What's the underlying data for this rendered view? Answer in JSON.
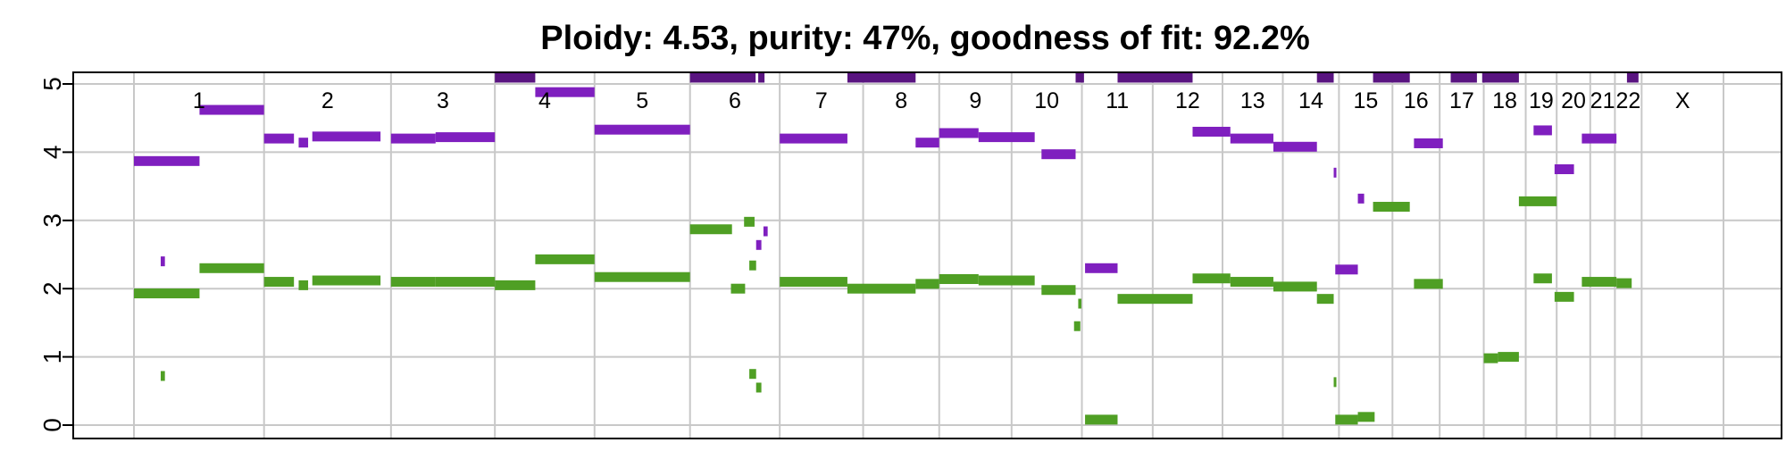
{
  "chart_data": {
    "type": "segments",
    "title": "Ploidy: 4.53, purity: 47%, goodness of fit: 92.2%",
    "xlabel": "",
    "ylabel": "",
    "ylim": [
      0,
      5
    ],
    "y_ticks": [
      "0",
      "1",
      "2",
      "3",
      "4",
      "5"
    ],
    "grid": true,
    "colors": {
      "major": "#7f1fbf",
      "minor": "#4f9f24",
      "clipped": "#591480",
      "grid": "#c8c8c8",
      "axis": "#000000",
      "text": "#000000"
    },
    "chromosomes": [
      {
        "label": "1",
        "start": 0,
        "end": 248
      },
      {
        "label": "2",
        "start": 248,
        "end": 490
      },
      {
        "label": "3",
        "start": 490,
        "end": 688
      },
      {
        "label": "4",
        "start": 688,
        "end": 878
      },
      {
        "label": "5",
        "start": 878,
        "end": 1060
      },
      {
        "label": "6",
        "start": 1060,
        "end": 1231
      },
      {
        "label": "7",
        "start": 1231,
        "end": 1390
      },
      {
        "label": "8",
        "start": 1390,
        "end": 1535
      },
      {
        "label": "9",
        "start": 1535,
        "end": 1673
      },
      {
        "label": "10",
        "start": 1673,
        "end": 1807
      },
      {
        "label": "11",
        "start": 1807,
        "end": 1942
      },
      {
        "label": "12",
        "start": 1942,
        "end": 2075
      },
      {
        "label": "13",
        "start": 2075,
        "end": 2190
      },
      {
        "label": "14",
        "start": 2190,
        "end": 2297
      },
      {
        "label": "15",
        "start": 2297,
        "end": 2399
      },
      {
        "label": "16",
        "start": 2399,
        "end": 2489
      },
      {
        "label": "17",
        "start": 2489,
        "end": 2573
      },
      {
        "label": "18",
        "start": 2573,
        "end": 2653
      },
      {
        "label": "19",
        "start": 2653,
        "end": 2712
      },
      {
        "label": "20",
        "start": 2712,
        "end": 2776
      },
      {
        "label": "21",
        "start": 2776,
        "end": 2823
      },
      {
        "label": "22",
        "start": 2823,
        "end": 2874
      },
      {
        "label": "X",
        "start": 2874,
        "end": 3030
      }
    ],
    "series": [
      {
        "name": "",
        "role": "major",
        "segments": [
          [
            0,
            125,
            3.87
          ],
          [
            125,
            248,
            4.62
          ],
          [
            248,
            305,
            4.2
          ],
          [
            314,
            332,
            4.14
          ],
          [
            340,
            470,
            4.23
          ],
          [
            490,
            575,
            4.2
          ],
          [
            575,
            688,
            4.22
          ],
          [
            688,
            765,
            5.1
          ],
          [
            765,
            878,
            4.88
          ],
          [
            878,
            1060,
            4.33
          ],
          [
            1060,
            1185,
            5.1
          ],
          [
            1190,
            1202,
            5.1
          ],
          [
            1186,
            1196,
            2.64
          ],
          [
            1200,
            1208,
            2.84
          ],
          [
            1231,
            1360,
            4.2
          ],
          [
            1360,
            1490,
            5.1
          ],
          [
            1490,
            1535,
            4.14
          ],
          [
            1535,
            1610,
            4.28
          ],
          [
            1610,
            1717,
            4.22
          ],
          [
            1730,
            1795,
            3.97
          ],
          [
            1795,
            1811,
            5.1
          ],
          [
            1813,
            1875,
            2.3
          ],
          [
            1875,
            2018,
            5.1
          ],
          [
            2018,
            2090,
            4.3
          ],
          [
            2090,
            2172,
            4.2
          ],
          [
            2172,
            2255,
            4.08
          ],
          [
            2255,
            2287,
            5.1
          ],
          [
            2287,
            2292,
            3.7
          ],
          [
            2290,
            2333,
            2.28
          ],
          [
            2333,
            2345,
            3.32
          ],
          [
            2362,
            2432,
            5.1
          ],
          [
            2440,
            2495,
            4.13
          ],
          [
            2510,
            2560,
            5.1
          ],
          [
            2570,
            2640,
            5.1
          ],
          [
            2668,
            2703,
            4.32
          ],
          [
            2708,
            2745,
            3.75
          ],
          [
            2760,
            2826,
            4.2
          ],
          [
            2846,
            2868,
            5.1
          ],
          [
            51,
            59,
            2.4
          ]
        ]
      },
      {
        "name": "",
        "role": "minor",
        "segments": [
          [
            0,
            125,
            1.93
          ],
          [
            125,
            248,
            2.3
          ],
          [
            248,
            305,
            2.1
          ],
          [
            314,
            332,
            2.05
          ],
          [
            340,
            470,
            2.12
          ],
          [
            490,
            575,
            2.1
          ],
          [
            575,
            688,
            2.1
          ],
          [
            688,
            765,
            2.05
          ],
          [
            765,
            878,
            2.43
          ],
          [
            878,
            1060,
            2.17
          ],
          [
            1060,
            1140,
            2.87
          ],
          [
            1163,
            1183,
            2.98
          ],
          [
            1173,
            1186,
            2.34
          ],
          [
            1138,
            1165,
            2.0
          ],
          [
            1231,
            1360,
            2.1
          ],
          [
            1360,
            1490,
            2.0
          ],
          [
            1490,
            1535,
            2.07
          ],
          [
            1535,
            1610,
            2.14
          ],
          [
            1610,
            1717,
            2.12
          ],
          [
            1730,
            1795,
            1.98
          ],
          [
            1800,
            1806,
            1.78
          ],
          [
            1792,
            1804,
            1.45
          ],
          [
            1813,
            1875,
            0.08
          ],
          [
            1875,
            2018,
            1.85
          ],
          [
            2018,
            2090,
            2.15
          ],
          [
            2090,
            2172,
            2.1
          ],
          [
            2172,
            2255,
            2.03
          ],
          [
            2255,
            2287,
            1.85
          ],
          [
            2287,
            2292,
            0.63
          ],
          [
            2290,
            2333,
            0.08
          ],
          [
            2333,
            2365,
            0.12
          ],
          [
            2362,
            2432,
            3.2
          ],
          [
            2440,
            2495,
            2.07
          ],
          [
            2573,
            2600,
            0.98
          ],
          [
            2600,
            2640,
            1.0
          ],
          [
            2640,
            2712,
            3.28
          ],
          [
            2668,
            2703,
            2.15
          ],
          [
            2708,
            2745,
            1.88
          ],
          [
            2760,
            2826,
            2.1
          ],
          [
            2826,
            2855,
            2.08
          ],
          [
            51,
            59,
            0.72
          ],
          [
            1173,
            1186,
            0.75
          ],
          [
            1186,
            1196,
            0.55
          ]
        ]
      }
    ]
  }
}
